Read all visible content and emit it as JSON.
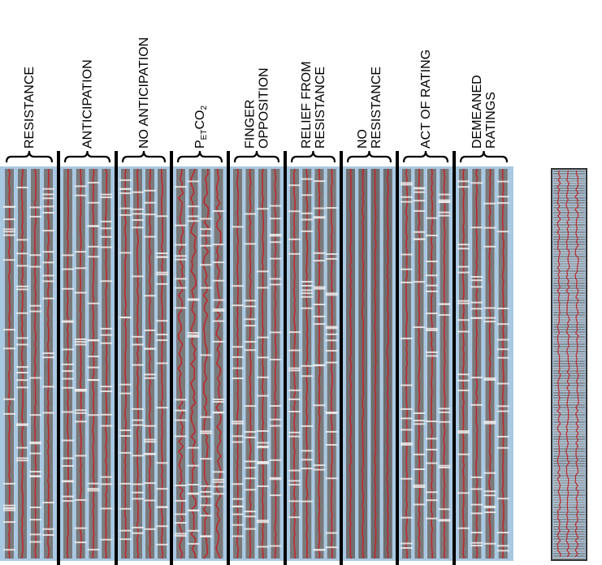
{
  "columns": [
    {
      "lines": [
        "RESISTANCE"
      ]
    },
    {
      "lines": [
        "ANTICIPATION"
      ]
    },
    {
      "lines": [
        "NO ANTICIPATION"
      ]
    },
    {
      "parts": [
        {
          "text": "P",
          "sub": false
        },
        {
          "text": "ET",
          "sub": true
        },
        {
          "text": "CO",
          "sub": false
        },
        {
          "text": "2",
          "sub": true
        }
      ]
    },
    {
      "lines": [
        "FINGER",
        "OPPOSITION"
      ]
    },
    {
      "lines": [
        "RELIEF FROM",
        "RESISTANCE"
      ]
    },
    {
      "lines": [
        "NO",
        "RESISTANCE"
      ]
    },
    {
      "lines": [
        "ACT OF RATING"
      ]
    },
    {
      "lines": [
        "DEMEANED",
        "RATINGS"
      ]
    }
  ]
}
